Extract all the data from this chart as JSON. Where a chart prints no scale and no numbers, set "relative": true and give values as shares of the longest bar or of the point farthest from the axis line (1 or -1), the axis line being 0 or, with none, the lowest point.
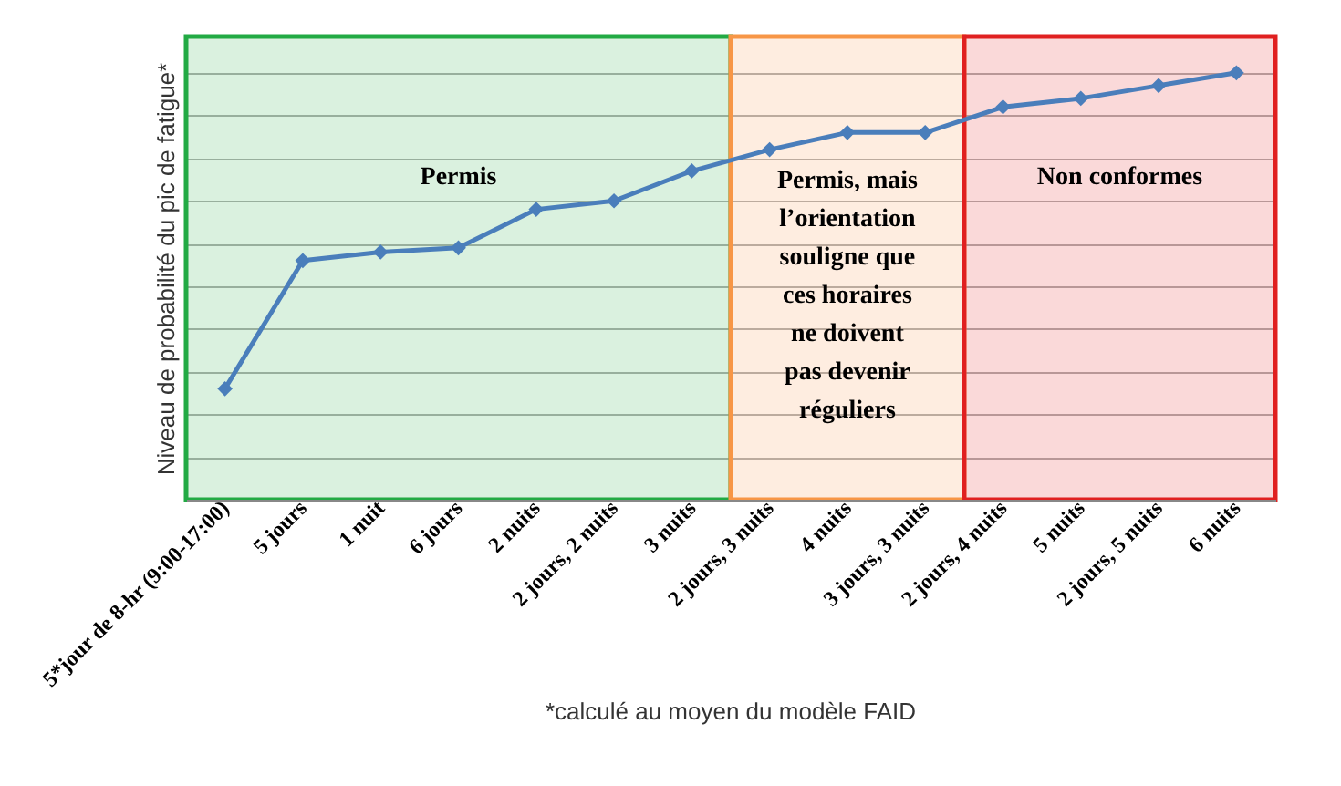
{
  "chart_data": {
    "type": "line",
    "relative": true,
    "ylabel": "Niveau de probabilité du pic de fatigue*",
    "categories": [
      "5*jour de 8-hr (9:00-17:00)",
      "5 jours",
      "1 nuit",
      "6 jours",
      "2 nuits",
      "2 jours, 2 nuits",
      "3 nuits",
      "2 jours, 3 nuits",
      "4 nuits",
      "3 jours, 3 nuits",
      "2 jours, 4 nuits",
      "5 nuits",
      "2 jours, 5 nuits",
      "6 nuits"
    ],
    "series": [
      {
        "color": "#4a7ebb",
        "values": [
          0.26,
          0.56,
          0.58,
          0.59,
          0.68,
          0.7,
          0.77,
          0.82,
          0.86,
          0.86,
          0.92,
          0.94,
          0.97,
          1
        ]
      }
    ],
    "marker": "diamond",
    "grid": "y",
    "bands": [
      {
        "axis": "x",
        "from": "5*jour de 8-hr (9:00-17:00)",
        "to": "3 nuits",
        "label": "Permis",
        "color": "#22aa44"
      },
      {
        "axis": "x",
        "from": "2 jours, 3 nuits",
        "to": "3 jours, 3 nuits",
        "label": "Permis, mais l’orientation souligne que ces horaires ne doivent pas devenir réguliers",
        "color": "#f79646"
      },
      {
        "axis": "x",
        "from": "2 jours, 4 nuits",
        "to": "6 nuits",
        "label": "Non conformes",
        "color": "#e02020"
      }
    ],
    "annotations": [
      "*calculé au moyen du modèle FAID"
    ]
  }
}
